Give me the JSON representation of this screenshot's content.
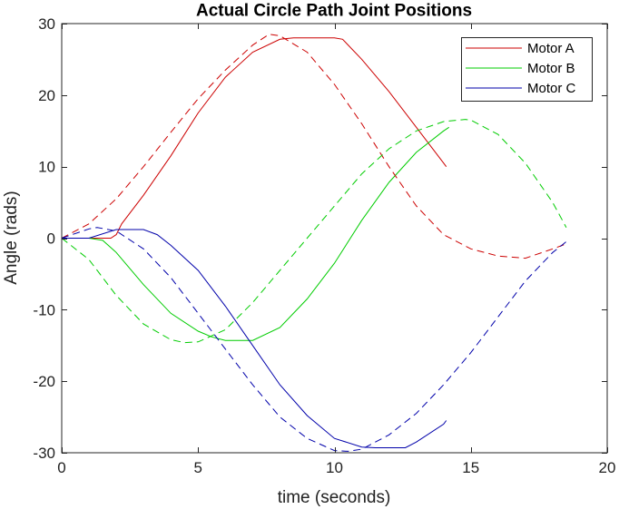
{
  "chart_data": {
    "type": "line",
    "title": "Actual Circle Path Joint Positions",
    "xlabel": "time (seconds)",
    "ylabel": "Angle (rads)",
    "xlim": [
      0,
      20
    ],
    "ylim": [
      -30,
      30
    ],
    "xticks": [
      0,
      5,
      10,
      15,
      20
    ],
    "yticks": [
      -30,
      -20,
      -10,
      0,
      10,
      20,
      30
    ],
    "grid": false,
    "legend_position": "top-right",
    "series": [
      {
        "name": "Motor A",
        "color": "#cc0000",
        "style": "solid",
        "x": [
          0,
          1,
          1.8,
          2,
          2.2,
          3,
          4,
          5,
          6,
          7,
          8,
          8.5,
          9,
          10,
          10.3,
          11,
          12,
          13,
          14,
          14.1
        ],
        "y": [
          0,
          0,
          0,
          0.5,
          2,
          6,
          11.5,
          17.5,
          22.5,
          26,
          27.8,
          28,
          28,
          28,
          27.8,
          25,
          20.5,
          15.5,
          10.5,
          10
        ]
      },
      {
        "name": "Motor B",
        "color": "#00cc00",
        "style": "solid",
        "x": [
          0,
          1,
          1.5,
          2,
          3,
          4,
          5,
          5.5,
          6,
          7,
          8,
          9,
          10,
          11,
          12,
          13,
          14,
          14.2
        ],
        "y": [
          0,
          0,
          -0.3,
          -2,
          -6.5,
          -10.5,
          -13,
          -13.8,
          -14.3,
          -14.3,
          -12.5,
          -8.5,
          -3.5,
          2.5,
          7.8,
          12,
          15,
          15.5
        ]
      },
      {
        "name": "Motor C",
        "color": "#0000aa",
        "style": "solid",
        "x": [
          0,
          1,
          2,
          3,
          3.5,
          4,
          5,
          6,
          7,
          8,
          9,
          10,
          11,
          11.5,
          12,
          12.6,
          13,
          14,
          14.1
        ],
        "y": [
          0,
          0,
          1.2,
          1.2,
          0.5,
          -1,
          -4.5,
          -9.5,
          -15,
          -20.5,
          -24.8,
          -28,
          -29.2,
          -29.3,
          -29.3,
          -29.3,
          -28.5,
          -26,
          -25.5
        ]
      },
      {
        "name": "",
        "color": "#cc0000",
        "style": "dashed",
        "x": [
          0,
          1,
          2,
          3,
          4,
          5,
          6,
          7,
          7.6,
          8,
          9,
          10,
          11,
          12,
          13,
          14,
          15,
          16,
          17,
          18,
          18.5
        ],
        "y": [
          0,
          2,
          5.5,
          10,
          14.8,
          19.5,
          23.5,
          27,
          28.5,
          28.3,
          26,
          21.5,
          16,
          10,
          4.5,
          0.5,
          -1.5,
          -2.5,
          -2.8,
          -1.5,
          -0.8
        ]
      },
      {
        "name": "",
        "color": "#00cc00",
        "style": "dashed",
        "x": [
          0,
          1,
          2,
          3,
          4,
          4.5,
          5,
          6,
          7,
          8,
          9,
          10,
          11,
          12,
          13,
          14,
          14.8,
          15,
          16,
          17,
          18,
          18.5
        ],
        "y": [
          0,
          -3,
          -8,
          -12,
          -14.2,
          -14.6,
          -14.5,
          -12.8,
          -9,
          -4.5,
          0,
          4.5,
          9,
          12.5,
          15,
          16.3,
          16.6,
          16.5,
          14.5,
          10.5,
          5,
          1.5
        ]
      },
      {
        "name": "",
        "color": "#0000aa",
        "style": "dashed",
        "x": [
          0,
          1,
          1.3,
          2,
          3,
          4,
          5,
          6,
          7,
          8,
          9,
          10,
          10.5,
          11,
          12,
          13,
          14,
          15,
          16,
          17,
          18,
          18.5
        ],
        "y": [
          0,
          1.3,
          1.5,
          1,
          -1.5,
          -5.5,
          -10.5,
          -15.5,
          -20.5,
          -25,
          -28,
          -29.7,
          -29.8,
          -29.5,
          -27.5,
          -24.5,
          -20.5,
          -16,
          -11,
          -6,
          -2,
          -0.5
        ]
      }
    ]
  }
}
